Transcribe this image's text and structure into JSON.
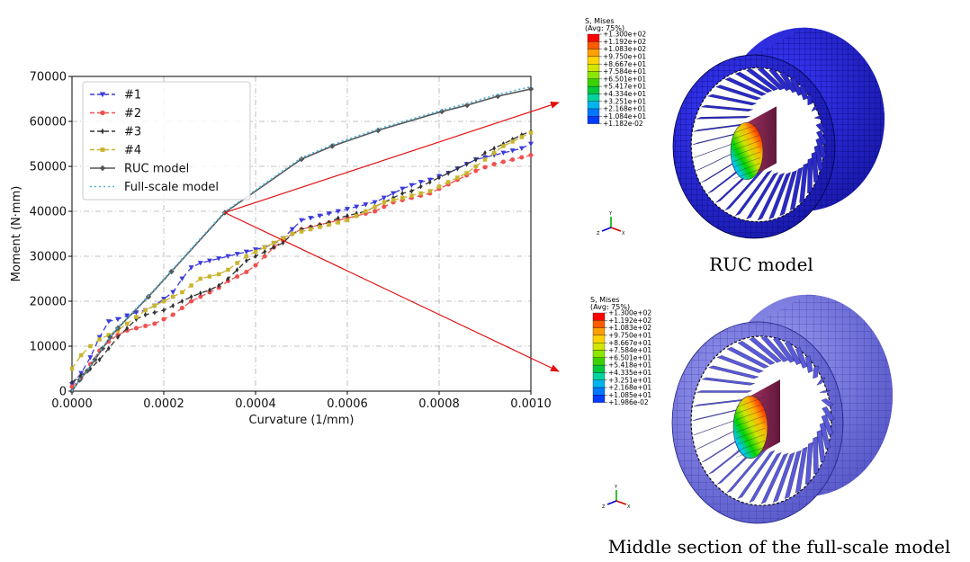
{
  "chart_data": {
    "type": "line",
    "xlabel": "Curvature (1/mm)",
    "ylabel": "Moment (N·mm)",
    "xlim": [
      0,
      0.001
    ],
    "ylim": [
      0,
      70000
    ],
    "xticks": [
      "0.0000",
      "0.0002",
      "0.0004",
      "0.0006",
      "0.0008",
      "0.0010"
    ],
    "yticks": [
      "0",
      "10000",
      "20000",
      "30000",
      "40000",
      "50000",
      "60000",
      "70000"
    ],
    "grid": true,
    "legend_position": "top-left",
    "series": [
      {
        "name": "#1",
        "color": "#3b3bdc",
        "marker": "triangle-down",
        "dash": "6,4",
        "points": [
          [
            0,
            1500
          ],
          [
            2e-05,
            4000
          ],
          [
            4e-05,
            7500
          ],
          [
            6e-05,
            12000
          ],
          [
            8e-05,
            15500
          ],
          [
            0.0001,
            16000
          ],
          [
            0.00012,
            16800
          ],
          [
            0.00014,
            17500
          ],
          [
            0.00016,
            18000
          ],
          [
            0.00018,
            19000
          ],
          [
            0.0002,
            20500
          ],
          [
            0.00022,
            22000
          ],
          [
            0.00024,
            25000
          ],
          [
            0.00026,
            27500
          ],
          [
            0.00028,
            28500
          ],
          [
            0.0003,
            29000
          ],
          [
            0.00032,
            29500
          ],
          [
            0.00034,
            30000
          ],
          [
            0.00036,
            30500
          ],
          [
            0.00038,
            31000
          ],
          [
            0.0004,
            31500
          ],
          [
            0.00042,
            32000
          ],
          [
            0.00044,
            32800
          ],
          [
            0.00046,
            34000
          ],
          [
            0.00048,
            36000
          ],
          [
            0.0005,
            38000
          ],
          [
            0.00052,
            38500
          ],
          [
            0.00054,
            39000
          ],
          [
            0.00056,
            39500
          ],
          [
            0.00058,
            40000
          ],
          [
            0.0006,
            40500
          ],
          [
            0.00062,
            41000
          ],
          [
            0.00064,
            41500
          ],
          [
            0.00066,
            42000
          ],
          [
            0.00068,
            43000
          ],
          [
            0.0007,
            44000
          ],
          [
            0.00072,
            45000
          ],
          [
            0.00074,
            45800
          ],
          [
            0.00076,
            46500
          ],
          [
            0.00078,
            47000
          ],
          [
            0.0008,
            47800
          ],
          [
            0.00082,
            48500
          ],
          [
            0.00084,
            49500
          ],
          [
            0.00086,
            50500
          ],
          [
            0.00088,
            51500
          ],
          [
            0.0009,
            52000
          ],
          [
            0.00092,
            52500
          ],
          [
            0.00094,
            53000
          ],
          [
            0.00096,
            53500
          ],
          [
            0.00098,
            54000
          ],
          [
            0.001,
            55000
          ]
        ]
      },
      {
        "name": "#2",
        "color": "#f05050",
        "marker": "circle",
        "dash": "6,4",
        "points": [
          [
            0,
            1000
          ],
          [
            2e-05,
            3000
          ],
          [
            4e-05,
            6000
          ],
          [
            6e-05,
            9000
          ],
          [
            8e-05,
            11000
          ],
          [
            0.0001,
            12500
          ],
          [
            0.00012,
            13500
          ],
          [
            0.00014,
            14000
          ],
          [
            0.00016,
            14500
          ],
          [
            0.00018,
            15000
          ],
          [
            0.0002,
            16000
          ],
          [
            0.00022,
            17000
          ],
          [
            0.00024,
            18500
          ],
          [
            0.00026,
            20000
          ],
          [
            0.00028,
            21000
          ],
          [
            0.0003,
            22000
          ],
          [
            0.00032,
            23000
          ],
          [
            0.00034,
            24500
          ],
          [
            0.00036,
            25500
          ],
          [
            0.00038,
            26500
          ],
          [
            0.0004,
            28000
          ],
          [
            0.00042,
            30000
          ],
          [
            0.00044,
            32000
          ],
          [
            0.00046,
            33500
          ],
          [
            0.00048,
            35000
          ],
          [
            0.0005,
            36000
          ],
          [
            0.00052,
            36500
          ],
          [
            0.00054,
            37000
          ],
          [
            0.00056,
            37500
          ],
          [
            0.00058,
            38000
          ],
          [
            0.0006,
            38500
          ],
          [
            0.00062,
            39000
          ],
          [
            0.00064,
            39500
          ],
          [
            0.00066,
            40000
          ],
          [
            0.00068,
            41000
          ],
          [
            0.0007,
            42000
          ],
          [
            0.00072,
            42500
          ],
          [
            0.00074,
            43000
          ],
          [
            0.00076,
            43500
          ],
          [
            0.00078,
            44000
          ],
          [
            0.0008,
            45000
          ],
          [
            0.00082,
            46000
          ],
          [
            0.00084,
            47000
          ],
          [
            0.00086,
            48000
          ],
          [
            0.00088,
            49000
          ],
          [
            0.0009,
            49800
          ],
          [
            0.00092,
            50500
          ],
          [
            0.00094,
            51000
          ],
          [
            0.00096,
            51500
          ],
          [
            0.00098,
            52000
          ],
          [
            0.001,
            52500
          ]
        ]
      },
      {
        "name": "#3",
        "color": "#333333",
        "marker": "thin-diamond",
        "dash": "6,4",
        "points": [
          [
            0,
            2000
          ],
          [
            2e-05,
            3500
          ],
          [
            4e-05,
            5000
          ],
          [
            6e-05,
            7000
          ],
          [
            8e-05,
            9500
          ],
          [
            0.0001,
            12000
          ],
          [
            0.00012,
            14000
          ],
          [
            0.00014,
            16000
          ],
          [
            0.00016,
            17000
          ],
          [
            0.00018,
            17500
          ],
          [
            0.0002,
            18000
          ],
          [
            0.00022,
            19000
          ],
          [
            0.00024,
            20000
          ],
          [
            0.00026,
            21000
          ],
          [
            0.00028,
            21800
          ],
          [
            0.0003,
            22500
          ],
          [
            0.00032,
            23500
          ],
          [
            0.00034,
            25000
          ],
          [
            0.00036,
            27000
          ],
          [
            0.00038,
            29000
          ],
          [
            0.0004,
            30000
          ],
          [
            0.00042,
            31000
          ],
          [
            0.00044,
            32000
          ],
          [
            0.00046,
            33000
          ],
          [
            0.00048,
            35000
          ],
          [
            0.0005,
            36000
          ],
          [
            0.00052,
            36500
          ],
          [
            0.00054,
            37000
          ],
          [
            0.00056,
            37500
          ],
          [
            0.00058,
            38500
          ],
          [
            0.0006,
            39000
          ],
          [
            0.00062,
            39500
          ],
          [
            0.00064,
            40000
          ],
          [
            0.00066,
            41000
          ],
          [
            0.00068,
            42000
          ],
          [
            0.0007,
            43000
          ],
          [
            0.00072,
            44000
          ],
          [
            0.00074,
            44500
          ],
          [
            0.00076,
            45500
          ],
          [
            0.00078,
            46500
          ],
          [
            0.0008,
            47500
          ],
          [
            0.00082,
            48500
          ],
          [
            0.00084,
            49500
          ],
          [
            0.00086,
            50500
          ],
          [
            0.00088,
            51500
          ],
          [
            0.0009,
            53000
          ],
          [
            0.00092,
            54000
          ],
          [
            0.00094,
            55000
          ],
          [
            0.00096,
            56000
          ],
          [
            0.00098,
            57000
          ],
          [
            0.001,
            57800
          ]
        ]
      },
      {
        "name": "#4",
        "color": "#c9b52e",
        "marker": "square",
        "dash": "6,4",
        "points": [
          [
            0,
            5000
          ],
          [
            2e-05,
            8000
          ],
          [
            4e-05,
            10000
          ],
          [
            6e-05,
            11500
          ],
          [
            8e-05,
            12500
          ],
          [
            0.0001,
            13500
          ],
          [
            0.00012,
            15000
          ],
          [
            0.00014,
            16500
          ],
          [
            0.00016,
            18000
          ],
          [
            0.00018,
            19000
          ],
          [
            0.0002,
            20000
          ],
          [
            0.00022,
            21000
          ],
          [
            0.00024,
            22000
          ],
          [
            0.00026,
            23500
          ],
          [
            0.00028,
            25000
          ],
          [
            0.0003,
            25500
          ],
          [
            0.00032,
            26000
          ],
          [
            0.00034,
            27000
          ],
          [
            0.00036,
            28500
          ],
          [
            0.00038,
            30000
          ],
          [
            0.0004,
            31000
          ],
          [
            0.00042,
            32000
          ],
          [
            0.00044,
            33000
          ],
          [
            0.00046,
            34000
          ],
          [
            0.00048,
            35000
          ],
          [
            0.0005,
            35500
          ],
          [
            0.00052,
            36000
          ],
          [
            0.00054,
            36500
          ],
          [
            0.00056,
            37000
          ],
          [
            0.00058,
            37500
          ],
          [
            0.0006,
            38000
          ],
          [
            0.00062,
            39000
          ],
          [
            0.00064,
            40000
          ],
          [
            0.00066,
            41000
          ],
          [
            0.00068,
            42000
          ],
          [
            0.0007,
            42500
          ],
          [
            0.00072,
            43000
          ],
          [
            0.00074,
            43500
          ],
          [
            0.00076,
            44000
          ],
          [
            0.00078,
            44500
          ],
          [
            0.0008,
            45500
          ],
          [
            0.00082,
            46500
          ],
          [
            0.00084,
            47500
          ],
          [
            0.00086,
            48500
          ],
          [
            0.00088,
            50000
          ],
          [
            0.0009,
            51500
          ],
          [
            0.00092,
            53000
          ],
          [
            0.00094,
            54500
          ],
          [
            0.00096,
            55500
          ],
          [
            0.00098,
            56500
          ],
          [
            0.001,
            57500
          ]
        ]
      },
      {
        "name": "RUC model",
        "color": "#555555",
        "marker": "diamond",
        "dash": "",
        "points": [
          [
            0,
            0
          ],
          [
            1.67e-05,
            2500
          ],
          [
            3.33e-05,
            4500
          ],
          [
            5e-05,
            7000
          ],
          [
            6.67e-05,
            9500
          ],
          [
            8.33e-05,
            12000
          ],
          [
            0.0001,
            14000
          ],
          [
            0.0001667,
            21000
          ],
          [
            0.0002167,
            26600
          ],
          [
            0.000333,
            39700
          ],
          [
            0.0005,
            51600
          ],
          [
            0.000567,
            54500
          ],
          [
            0.000667,
            58000
          ],
          [
            0.000806,
            62200
          ],
          [
            0.000861,
            63600
          ],
          [
            0.000928,
            65600
          ],
          [
            0.001,
            67200
          ]
        ]
      },
      {
        "name": "Full-scale model",
        "color": "#4fb3d9",
        "marker": "none",
        "dash": "2,3",
        "points": [
          [
            0,
            0
          ],
          [
            1.67e-05,
            2600
          ],
          [
            3.33e-05,
            4700
          ],
          [
            5e-05,
            7200
          ],
          [
            6.67e-05,
            9700
          ],
          [
            8.33e-05,
            12200
          ],
          [
            0.0001,
            14200
          ],
          [
            0.0001667,
            21200
          ],
          [
            0.0002167,
            26800
          ],
          [
            0.000333,
            39900
          ],
          [
            0.0005,
            51900
          ],
          [
            0.000567,
            54800
          ],
          [
            0.000667,
            58300
          ],
          [
            0.000806,
            62500
          ],
          [
            0.000861,
            64000
          ],
          [
            0.000928,
            66000
          ],
          [
            0.001,
            67700
          ]
        ]
      }
    ]
  },
  "colorbar_top": {
    "title": "S, Mises",
    "subtitle": "(Avg: 75%)",
    "labels": [
      "+1.300e+02",
      "+1.192e+02",
      "+1.083e+02",
      "+9.750e+01",
      "+8.667e+01",
      "+7.584e+01",
      "+6.501e+01",
      "+5.417e+01",
      "+4.334e+01",
      "+3.251e+01",
      "+2.168e+01",
      "+1.084e+01",
      "+1.182e-02"
    ]
  },
  "colorbar_bottom": {
    "title": "S, Mises",
    "subtitle": "(Avg: 75%)",
    "labels": [
      "+1.300e+02",
      "+1.192e+02",
      "+1.083e+02",
      "+9.750e+01",
      "+8.667e+01",
      "+7.584e+01",
      "+6.501e+01",
      "+5.418e+01",
      "+4.335e+01",
      "+3.251e+01",
      "+2.168e+01",
      "+1.085e+01",
      "+1.986e-02"
    ]
  },
  "colormap": [
    "#ff0000",
    "#ff5a00",
    "#ffa000",
    "#ffd200",
    "#d2e600",
    "#8ce600",
    "#3cd200",
    "#00c83c",
    "#00d2a0",
    "#00b4f0",
    "#0078ff",
    "#003cff",
    "#0000c8"
  ],
  "captions": {
    "top": "RUC model",
    "bottom": "Middle section of the full-scale model"
  },
  "triad": {
    "x": "X",
    "y": "Y",
    "z": "Z"
  },
  "arrow_color": "#e01010"
}
